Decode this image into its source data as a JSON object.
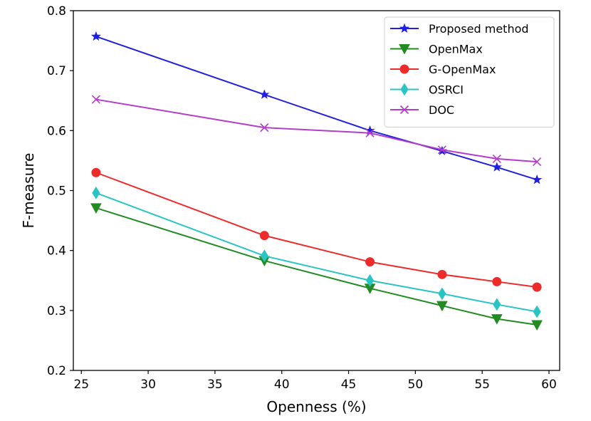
{
  "chart_data": {
    "type": "line",
    "title": "",
    "xlabel": "Openness (%)",
    "ylabel": "F-measure",
    "xlim": [
      24.4,
      60.8
    ],
    "ylim": [
      0.2,
      0.8
    ],
    "x_ticks": [
      25,
      30,
      35,
      40,
      45,
      50,
      55,
      60
    ],
    "x_tick_labels": [
      "25",
      "30",
      "35",
      "40",
      "45",
      "50",
      "55",
      "60"
    ],
    "y_ticks": [
      0.2,
      0.3,
      0.4,
      0.5,
      0.6,
      0.7,
      0.8
    ],
    "y_tick_labels": [
      "0.2",
      "0.3",
      "0.4",
      "0.5",
      "0.6",
      "0.7",
      "0.8"
    ],
    "grid": false,
    "legend_position": "top-right",
    "x": [
      26.1,
      38.7,
      46.6,
      52.0,
      56.1,
      59.1
    ],
    "series": [
      {
        "name": "Proposed method",
        "color": "#1f1fdd",
        "marker": "star",
        "values": [
          0.757,
          0.66,
          0.6,
          0.566,
          0.539,
          0.518
        ]
      },
      {
        "name": "OpenMax",
        "color": "#228b22",
        "marker": "triangle-down",
        "values": [
          0.471,
          0.383,
          0.337,
          0.308,
          0.286,
          0.276
        ]
      },
      {
        "name": "G-OpenMax",
        "color": "#ee2b2b",
        "marker": "circle",
        "values": [
          0.53,
          0.425,
          0.381,
          0.36,
          0.348,
          0.339
        ]
      },
      {
        "name": "OSRCI",
        "color": "#2bc4c4",
        "marker": "thin-diamond",
        "values": [
          0.496,
          0.391,
          0.35,
          0.328,
          0.31,
          0.298
        ]
      },
      {
        "name": "DOC",
        "color": "#b43cc8",
        "marker": "x",
        "values": [
          0.652,
          0.605,
          0.596,
          0.568,
          0.553,
          0.548
        ]
      }
    ]
  }
}
